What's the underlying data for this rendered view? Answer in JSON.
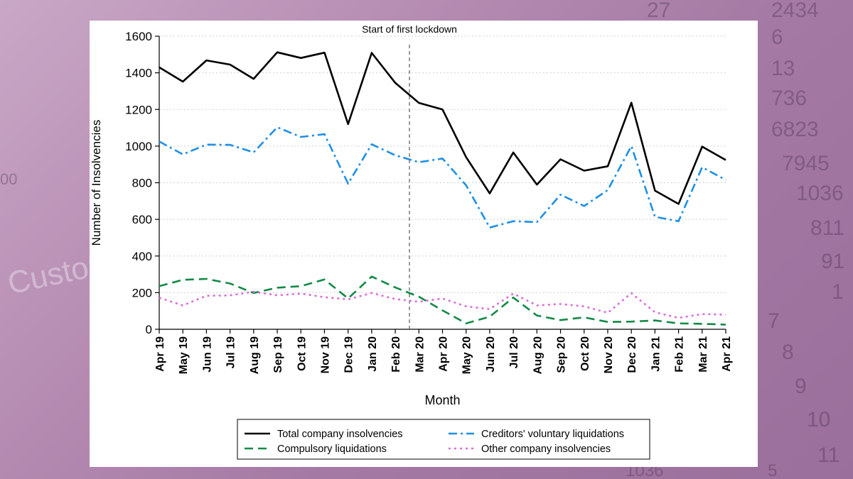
{
  "background": {
    "numbers": [
      "27",
      "2434",
      "6",
      "13",
      "736",
      "6823",
      "7945",
      "1036",
      "811",
      "91",
      "1",
      "8",
      "9",
      "10",
      "11",
      "7",
      "1036",
      "5",
      "00"
    ],
    "word": "Custom"
  },
  "chart_data": {
    "type": "line",
    "title": "",
    "xlabel": "Month",
    "ylabel": "Number of Insolvencies",
    "ylim": [
      0,
      1600
    ],
    "yticks": [
      0,
      200,
      400,
      600,
      800,
      1000,
      1200,
      1400,
      1600
    ],
    "grid": true,
    "legend_position": "bottom",
    "categories": [
      "Apr 19",
      "May 19",
      "Jun 19",
      "Jul 19",
      "Aug 19",
      "Sep 19",
      "Oct 19",
      "Nov 19",
      "Dec 19",
      "Jan 20",
      "Feb 20",
      "Mar 20",
      "Apr 20",
      "May 20",
      "Jun 20",
      "Jul 20",
      "Aug 20",
      "Sep 20",
      "Oct 20",
      "Nov 20",
      "Dec 20",
      "Jan 21",
      "Feb 21",
      "Mar 21",
      "Apr 21"
    ],
    "annotation": {
      "label": "Start of first lockdown",
      "between": [
        "Feb 20",
        "Mar 20"
      ],
      "position": 10.6
    },
    "series": [
      {
        "name": "Total company insolvencies",
        "color": "#000000",
        "dash": "solid",
        "values": [
          1430,
          1352,
          1468,
          1445,
          1367,
          1512,
          1481,
          1510,
          1120,
          1509,
          1345,
          1236,
          1200,
          940,
          742,
          965,
          790,
          928,
          866,
          890,
          1237,
          757,
          684,
          997,
          924
        ]
      },
      {
        "name": "Creditors' voluntary liquidations",
        "color": "#1f8fe5",
        "dash": "dashdot",
        "values": [
          1025,
          955,
          1008,
          1007,
          966,
          1103,
          1050,
          1065,
          795,
          1010,
          950,
          912,
          932,
          786,
          555,
          590,
          585,
          735,
          673,
          760,
          1000,
          614,
          590,
          885,
          815
        ]
      },
      {
        "name": "Compulsory liquidations",
        "color": "#128a46",
        "dash": "dash",
        "values": [
          235,
          270,
          275,
          250,
          198,
          227,
          235,
          272,
          168,
          288,
          228,
          178,
          103,
          32,
          68,
          173,
          75,
          50,
          65,
          40,
          42,
          48,
          32,
          30,
          25
        ]
      },
      {
        "name": "Other company insolvencies",
        "color": "#d96ed9",
        "dash": "dot",
        "values": [
          172,
          130,
          183,
          185,
          205,
          185,
          195,
          175,
          163,
          198,
          165,
          150,
          168,
          125,
          110,
          195,
          130,
          138,
          125,
          90,
          197,
          93,
          62,
          83,
          80
        ]
      }
    ]
  }
}
